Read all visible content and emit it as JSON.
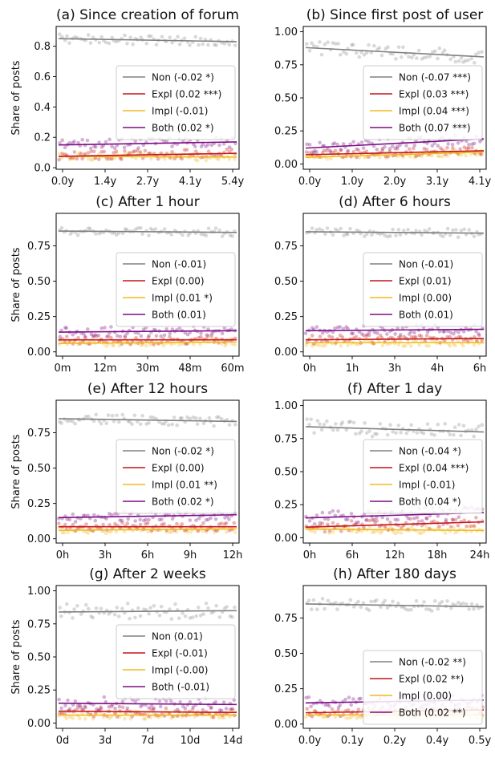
{
  "colors": {
    "Non": "#808080",
    "Expl": "#c4161c",
    "Impl": "#f2b91d",
    "Both": "#7b0d84"
  },
  "ylabel": "Share of posts",
  "chart_data": [
    {
      "type": "scatter",
      "title": "(a) Since creation of forum",
      "ylabel": "Share of posts",
      "xticks": [
        "0.0y",
        "1.4y",
        "2.7y",
        "4.1y",
        "5.4y"
      ],
      "xlim": [
        0,
        5.4
      ],
      "ylim": [
        -0.01,
        0.93
      ],
      "yticks": [
        0.0,
        0.2,
        0.4,
        0.6,
        0.8
      ],
      "ytick_labels": [
        "0.0",
        "0.2",
        "0.4",
        "0.6",
        "0.8"
      ],
      "legend_position": "center-right",
      "series": [
        {
          "name": "Non (-0.02 *)",
          "key": "Non",
          "trend": [
            0.85,
            0.83
          ],
          "level": 0.84,
          "spread": 0.03
        },
        {
          "name": "Expl (0.02 ***)",
          "key": "Expl",
          "trend": [
            0.075,
            0.095
          ],
          "level": 0.085,
          "spread": 0.03
        },
        {
          "name": "Impl (-0.01)",
          "key": "Impl",
          "trend": [
            0.075,
            0.07
          ],
          "level": 0.072,
          "spread": 0.025
        },
        {
          "name": "Both (0.02 *)",
          "key": "Both",
          "trend": [
            0.15,
            0.17
          ],
          "level": 0.16,
          "spread": 0.035
        }
      ]
    },
    {
      "type": "scatter",
      "title": "(b) Since first post of user",
      "ylabel": "",
      "xticks": [
        "0.0y",
        "1.0y",
        "2.0y",
        "3.1y",
        "4.1y"
      ],
      "xlim": [
        0,
        4.1
      ],
      "ylim": [
        -0.04,
        1.04
      ],
      "yticks": [
        0.0,
        0.25,
        0.5,
        0.75,
        1.0
      ],
      "ytick_labels": [
        "0.00",
        "0.25",
        "0.50",
        "0.75",
        "1.00"
      ],
      "legend_position": "center-right",
      "series": [
        {
          "name": "Non (-0.07 ***)",
          "key": "Non",
          "trend": [
            0.88,
            0.81
          ],
          "level": 0.85,
          "spread": 0.05
        },
        {
          "name": "Expl (0.03 ***)",
          "key": "Expl",
          "trend": [
            0.07,
            0.1
          ],
          "level": 0.085,
          "spread": 0.03
        },
        {
          "name": "Impl (0.04 ***)",
          "key": "Impl",
          "trend": [
            0.05,
            0.09
          ],
          "level": 0.07,
          "spread": 0.025
        },
        {
          "name": "Both (0.07 ***)",
          "key": "Both",
          "trend": [
            0.12,
            0.19
          ],
          "level": 0.155,
          "spread": 0.04
        }
      ]
    },
    {
      "type": "scatter",
      "title": "(c) After 1 hour",
      "ylabel": "Share of posts",
      "xticks": [
        "0m",
        "12m",
        "30m",
        "48m",
        "60m"
      ],
      "xlim": [
        0,
        60
      ],
      "ylim": [
        -0.03,
        0.98
      ],
      "yticks": [
        0.0,
        0.25,
        0.5,
        0.75
      ],
      "ytick_labels": [
        "0.00",
        "0.25",
        "0.50",
        "0.75"
      ],
      "legend_position": "center-right",
      "series": [
        {
          "name": "Non (-0.01)",
          "key": "Non",
          "trend": [
            0.855,
            0.845
          ],
          "level": 0.85,
          "spread": 0.03
        },
        {
          "name": "Expl (0.00)",
          "key": "Expl",
          "trend": [
            0.085,
            0.085
          ],
          "level": 0.085,
          "spread": 0.03
        },
        {
          "name": "Impl (0.01 *)",
          "key": "Impl",
          "trend": [
            0.06,
            0.07
          ],
          "level": 0.065,
          "spread": 0.025
        },
        {
          "name": "Both (0.01)",
          "key": "Both",
          "trend": [
            0.14,
            0.15
          ],
          "level": 0.145,
          "spread": 0.035
        }
      ]
    },
    {
      "type": "scatter",
      "title": "(d) After 6 hours",
      "ylabel": "",
      "xticks": [
        "0h",
        "1h",
        "3h",
        "4h",
        "6h"
      ],
      "xlim": [
        0,
        6
      ],
      "ylim": [
        -0.03,
        0.98
      ],
      "yticks": [
        0.0,
        0.25,
        0.5,
        0.75
      ],
      "ytick_labels": [
        "0.00",
        "0.25",
        "0.50",
        "0.75"
      ],
      "legend_position": "center-right",
      "series": [
        {
          "name": "Non (-0.01)",
          "key": "Non",
          "trend": [
            0.85,
            0.84
          ],
          "level": 0.845,
          "spread": 0.03
        },
        {
          "name": "Expl (0.01)",
          "key": "Expl",
          "trend": [
            0.085,
            0.095
          ],
          "level": 0.09,
          "spread": 0.03
        },
        {
          "name": "Impl (0.00)",
          "key": "Impl",
          "trend": [
            0.065,
            0.065
          ],
          "level": 0.065,
          "spread": 0.025
        },
        {
          "name": "Both (0.01)",
          "key": "Both",
          "trend": [
            0.15,
            0.16
          ],
          "level": 0.155,
          "spread": 0.035
        }
      ]
    },
    {
      "type": "scatter",
      "title": "(e) After 12 hours",
      "ylabel": "Share of posts",
      "xticks": [
        "0h",
        "3h",
        "6h",
        "9h",
        "12h"
      ],
      "xlim": [
        0,
        12
      ],
      "ylim": [
        -0.03,
        0.98
      ],
      "yticks": [
        0.0,
        0.25,
        0.5,
        0.75
      ],
      "ytick_labels": [
        "0.00",
        "0.25",
        "0.50",
        "0.75"
      ],
      "legend_position": "center-right",
      "series": [
        {
          "name": "Non (-0.02 *)",
          "key": "Non",
          "trend": [
            0.85,
            0.83
          ],
          "level": 0.84,
          "spread": 0.035
        },
        {
          "name": "Expl (0.00)",
          "key": "Expl",
          "trend": [
            0.085,
            0.085
          ],
          "level": 0.085,
          "spread": 0.03
        },
        {
          "name": "Impl (0.01 **)",
          "key": "Impl",
          "trend": [
            0.06,
            0.07
          ],
          "level": 0.065,
          "spread": 0.025
        },
        {
          "name": "Both (0.02 *)",
          "key": "Both",
          "trend": [
            0.15,
            0.17
          ],
          "level": 0.16,
          "spread": 0.035
        }
      ]
    },
    {
      "type": "scatter",
      "title": "(f) After 1 day",
      "ylabel": "",
      "xticks": [
        "0h",
        "6h",
        "12h",
        "18h",
        "24h"
      ],
      "xlim": [
        0,
        24
      ],
      "ylim": [
        -0.04,
        1.04
      ],
      "yticks": [
        0.0,
        0.25,
        0.5,
        0.75,
        1.0
      ],
      "ytick_labels": [
        "0.00",
        "0.25",
        "0.50",
        "0.75",
        "1.00"
      ],
      "legend_position": "center-right",
      "series": [
        {
          "name": "Non (-0.04 *)",
          "key": "Non",
          "trend": [
            0.84,
            0.8
          ],
          "level": 0.82,
          "spread": 0.06
        },
        {
          "name": "Expl (0.04 ***)",
          "key": "Expl",
          "trend": [
            0.08,
            0.12
          ],
          "level": 0.1,
          "spread": 0.04
        },
        {
          "name": "Impl (-0.01)",
          "key": "Impl",
          "trend": [
            0.065,
            0.055
          ],
          "level": 0.06,
          "spread": 0.03
        },
        {
          "name": "Both (0.04 *)",
          "key": "Both",
          "trend": [
            0.15,
            0.19
          ],
          "level": 0.17,
          "spread": 0.05
        }
      ]
    },
    {
      "type": "scatter",
      "title": "(g) After 2 weeks",
      "ylabel": "Share of posts",
      "xticks": [
        "0d",
        "3d",
        "7d",
        "10d",
        "14d"
      ],
      "xlim": [
        0,
        14
      ],
      "ylim": [
        -0.04,
        1.04
      ],
      "yticks": [
        0.0,
        0.25,
        0.5,
        0.75,
        1.0
      ],
      "ytick_labels": [
        "0.00",
        "0.25",
        "0.50",
        "0.75",
        "1.00"
      ],
      "legend_position": "center-right",
      "series": [
        {
          "name": "Non (0.01)",
          "key": "Non",
          "trend": [
            0.84,
            0.85
          ],
          "level": 0.845,
          "spread": 0.06
        },
        {
          "name": "Expl (-0.01)",
          "key": "Expl",
          "trend": [
            0.09,
            0.08
          ],
          "level": 0.085,
          "spread": 0.04
        },
        {
          "name": "Impl (-0.00)",
          "key": "Impl",
          "trend": [
            0.06,
            0.06
          ],
          "level": 0.06,
          "spread": 0.03
        },
        {
          "name": "Both (-0.01)",
          "key": "Both",
          "trend": [
            0.15,
            0.14
          ],
          "level": 0.145,
          "spread": 0.05
        }
      ]
    },
    {
      "type": "scatter",
      "title": "(h) After 180 days",
      "ylabel": "",
      "xticks": [
        "0.0y",
        "0.1y",
        "0.2y",
        "0.4y",
        "0.5y"
      ],
      "xlim": [
        0,
        0.5
      ],
      "ylim": [
        -0.03,
        0.98
      ],
      "yticks": [
        0.0,
        0.25,
        0.5,
        0.75
      ],
      "ytick_labels": [
        "0.00",
        "0.25",
        "0.50",
        "0.75"
      ],
      "legend_position": "lower-right",
      "series": [
        {
          "name": "Non (-0.02 **)",
          "key": "Non",
          "trend": [
            0.85,
            0.83
          ],
          "level": 0.84,
          "spread": 0.04
        },
        {
          "name": "Expl (0.02 **)",
          "key": "Expl",
          "trend": [
            0.08,
            0.1
          ],
          "level": 0.09,
          "spread": 0.03
        },
        {
          "name": "Impl (0.00)",
          "key": "Impl",
          "trend": [
            0.065,
            0.065
          ],
          "level": 0.065,
          "spread": 0.025
        },
        {
          "name": "Both (0.02 **)",
          "key": "Both",
          "trend": [
            0.15,
            0.17
          ],
          "level": 0.16,
          "spread": 0.04
        }
      ]
    }
  ]
}
